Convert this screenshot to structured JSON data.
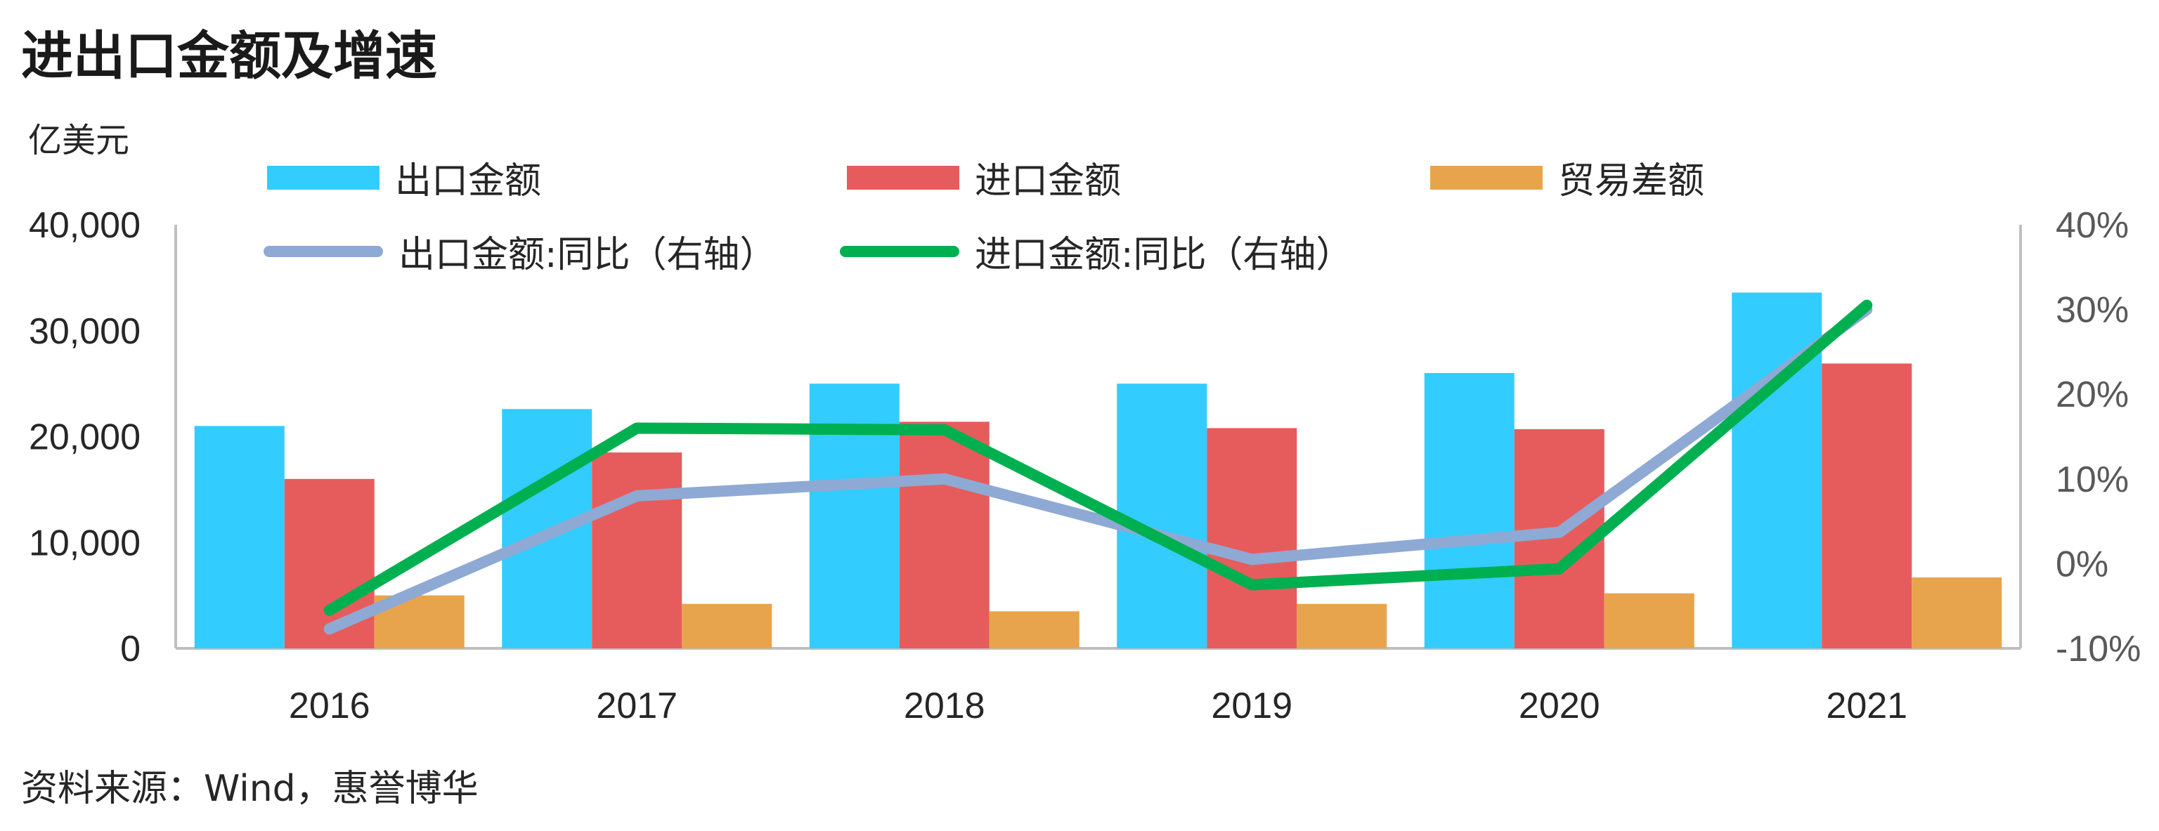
{
  "title": "进出口金额及增速",
  "unit_label": "亿美元",
  "source": "资料来源：Wind，惠誉博华",
  "colors": {
    "export": "#33CCFF",
    "import": "#E65C5C",
    "balance": "#E8A44C",
    "export_yoy": "#8EA9D4",
    "import_yoy": "#00B050",
    "axis": "#BFBFBF"
  },
  "chart_data": {
    "type": "bar",
    "categories": [
      "2016",
      "2017",
      "2018",
      "2019",
      "2020",
      "2021"
    ],
    "series": [
      {
        "name": "出口金额",
        "kind": "bar",
        "axis": "left",
        "values": [
          21000,
          22600,
          25000,
          25000,
          26000,
          33600
        ]
      },
      {
        "name": "进口金额",
        "kind": "bar",
        "axis": "left",
        "values": [
          16000,
          18500,
          21400,
          20800,
          20700,
          26900
        ]
      },
      {
        "name": "贸易差额",
        "kind": "bar",
        "axis": "left",
        "values": [
          5000,
          4200,
          3500,
          4200,
          5200,
          6700
        ]
      },
      {
        "name": "出口金额:同比（右轴）",
        "kind": "line",
        "axis": "right",
        "values": [
          -7.7,
          8.0,
          10.0,
          0.5,
          3.7,
          30.0
        ]
      },
      {
        "name": "进口金额:同比（右轴）",
        "kind": "line",
        "axis": "right",
        "values": [
          -5.5,
          16.0,
          15.8,
          -2.5,
          -0.6,
          30.5
        ]
      }
    ],
    "y_left": {
      "min": 0,
      "max": 40000,
      "ticks": [
        "0",
        "10,000",
        "20,000",
        "30,000",
        "40,000"
      ]
    },
    "y_right": {
      "min": -10,
      "max": 40,
      "ticks": [
        "-10%",
        "0%",
        "10%",
        "20%",
        "30%",
        "40%"
      ]
    },
    "grid": false,
    "legend": "top"
  }
}
